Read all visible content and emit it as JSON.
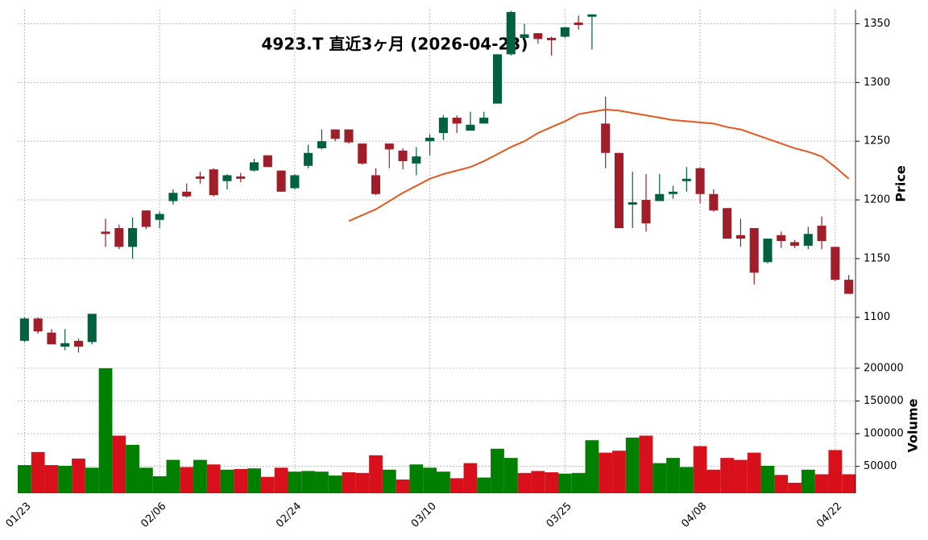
{
  "chart_data": {
    "type": "candlestick",
    "title": "4923.T  直近3ヶ月  (2026-04-23)",
    "categories": [
      "01/23",
      null,
      null,
      null,
      null,
      null,
      null,
      null,
      null,
      null,
      "02/06",
      null,
      null,
      null,
      null,
      null,
      null,
      null,
      null,
      null,
      "02/24",
      null,
      null,
      null,
      null,
      null,
      null,
      null,
      null,
      null,
      "03/10",
      null,
      null,
      null,
      null,
      null,
      null,
      null,
      null,
      null,
      "03/25",
      null,
      null,
      null,
      null,
      null,
      null,
      null,
      null,
      null,
      "04/08",
      null,
      null,
      null,
      null,
      null,
      null,
      null,
      null,
      null,
      "04/22",
      null
    ],
    "open": [
      1080,
      1099,
      1087,
      1075,
      1080,
      1079,
      1173,
      1176,
      1160,
      1191,
      1183,
      1199,
      1207,
      1220,
      1226,
      1216,
      1220,
      1225,
      1238,
      1225,
      1210,
      1229,
      1244,
      1260,
      1260,
      1248,
      1221,
      1248,
      1242,
      1231,
      1250,
      1257,
      1270,
      1259,
      1265,
      1282,
      1324,
      1338,
      1342,
      1338,
      1339,
      1351,
      1356,
      1265,
      1240,
      1196,
      1200,
      1199,
      1205,
      1216,
      1227,
      1205,
      1193,
      1170,
      1176,
      1147,
      1170,
      1164,
      1161,
      1178,
      1160,
      1132
    ],
    "high": [
      1100,
      1100,
      1090,
      1090,
      1082,
      1103,
      1184,
      1179,
      1185,
      1191,
      1190,
      1209,
      1214,
      1224,
      1227,
      1222,
      1223,
      1235,
      1238,
      1225,
      1222,
      1247,
      1260,
      1260,
      1260,
      1248,
      1227,
      1248,
      1244,
      1245,
      1256,
      1272,
      1272,
      1275,
      1275,
      1324,
      1361,
      1350,
      1342,
      1339,
      1347,
      1357,
      1358,
      1288,
      1240,
      1224,
      1222,
      1222,
      1212,
      1228,
      1228,
      1209,
      1193,
      1184,
      1176,
      1167,
      1173,
      1166,
      1177,
      1186,
      1160,
      1136
    ],
    "low": [
      1079,
      1086,
      1077,
      1072,
      1070,
      1077,
      1160,
      1158,
      1150,
      1175,
      1176,
      1196,
      1202,
      1214,
      1203,
      1209,
      1215,
      1224,
      1228,
      1207,
      1209,
      1227,
      1243,
      1250,
      1248,
      1230,
      1204,
      1227,
      1226,
      1221,
      1238,
      1251,
      1257,
      1259,
      1265,
      1282,
      1323,
      1338,
      1333,
      1323,
      1338,
      1345,
      1328,
      1227,
      1176,
      1176,
      1173,
      1199,
      1201,
      1207,
      1197,
      1190,
      1167,
      1160,
      1128,
      1146,
      1159,
      1159,
      1158,
      1158,
      1131,
      1120
    ],
    "close": [
      1099,
      1088,
      1077,
      1078,
      1075,
      1103,
      1171,
      1160,
      1176,
      1177,
      1188,
      1206,
      1203,
      1218,
      1204,
      1221,
      1218,
      1232,
      1228,
      1207,
      1221,
      1240,
      1250,
      1252,
      1249,
      1231,
      1205,
      1243,
      1233,
      1237,
      1253,
      1270,
      1265,
      1264,
      1270,
      1324,
      1360,
      1341,
      1337,
      1336,
      1347,
      1349,
      1358,
      1240,
      1176,
      1198,
      1180,
      1205,
      1207,
      1218,
      1205,
      1191,
      1167,
      1167,
      1138,
      1167,
      1165,
      1161,
      1171,
      1165,
      1132,
      1120
    ],
    "up_color": "#00613e",
    "down_color": "#a01d2a",
    "ma": {
      "color": "#e8561e",
      "values": [
        null,
        null,
        null,
        null,
        null,
        null,
        null,
        null,
        null,
        null,
        null,
        null,
        null,
        null,
        null,
        null,
        null,
        null,
        null,
        null,
        null,
        null,
        null,
        null,
        1182,
        1187,
        1192,
        1199,
        1206,
        1212,
        1218,
        1222,
        1225,
        1228,
        1233,
        1239,
        1245,
        1250,
        1257,
        1262,
        1267,
        1273,
        1275,
        1277,
        1276,
        1274,
        1272,
        1270,
        1268,
        1267,
        1266,
        1265,
        1262,
        1260,
        1256,
        1252,
        1248,
        1244,
        1241,
        1237,
        1228,
        1218
      ]
    },
    "ylabel": "Price",
    "ylim": [
      1060,
      1362
    ],
    "yticks": [
      1100,
      1150,
      1200,
      1250,
      1300,
      1350
    ],
    "grid": true,
    "volume": {
      "ylabel": "Volume",
      "ylim": [
        9000,
        206000
      ],
      "yticks": [
        50000,
        100000,
        150000,
        200000
      ],
      "values": [
        52000,
        72000,
        52000,
        51000,
        62000,
        48000,
        200000,
        97000,
        83000,
        48000,
        35000,
        60000,
        49000,
        60000,
        53000,
        45000,
        46000,
        47000,
        34000,
        48000,
        42000,
        43000,
        42000,
        36000,
        41000,
        40000,
        67000,
        45000,
        30000,
        53000,
        48000,
        42000,
        32000,
        55000,
        33000,
        77000,
        63000,
        40000,
        43000,
        41000,
        39000,
        40000,
        90000,
        71000,
        74000,
        94000,
        97000,
        55000,
        63000,
        49000,
        81000,
        45000,
        63000,
        60000,
        71000,
        51000,
        37000,
        25000,
        45000,
        38000,
        75000,
        38000
      ],
      "colors": [
        "#007f00",
        "#d7101c",
        "#d7101c",
        "#007f00",
        "#d7101c",
        "#007f00",
        "#007f00",
        "#d7101c",
        "#007f00",
        "#007f00",
        "#007f00",
        "#007f00",
        "#d7101c",
        "#007f00",
        "#d7101c",
        "#007f00",
        "#d7101c",
        "#007f00",
        "#d7101c",
        "#d7101c",
        "#007f00",
        "#007f00",
        "#007f00",
        "#007f00",
        "#d7101c",
        "#d7101c",
        "#d7101c",
        "#007f00",
        "#d7101c",
        "#007f00",
        "#007f00",
        "#007f00",
        "#d7101c",
        "#d7101c",
        "#007f00",
        "#007f00",
        "#007f00",
        "#d7101c",
        "#d7101c",
        "#d7101c",
        "#007f00",
        "#007f00",
        "#007f00",
        "#d7101c",
        "#d7101c",
        "#007f00",
        "#d7101c",
        "#007f00",
        "#007f00",
        "#007f00",
        "#d7101c",
        "#d7101c",
        "#d7101c",
        "#d7101c",
        "#d7101c",
        "#007f00",
        "#d7101c",
        "#d7101c",
        "#007f00",
        "#d7101c",
        "#d7101c",
        "#d7101c"
      ]
    }
  }
}
